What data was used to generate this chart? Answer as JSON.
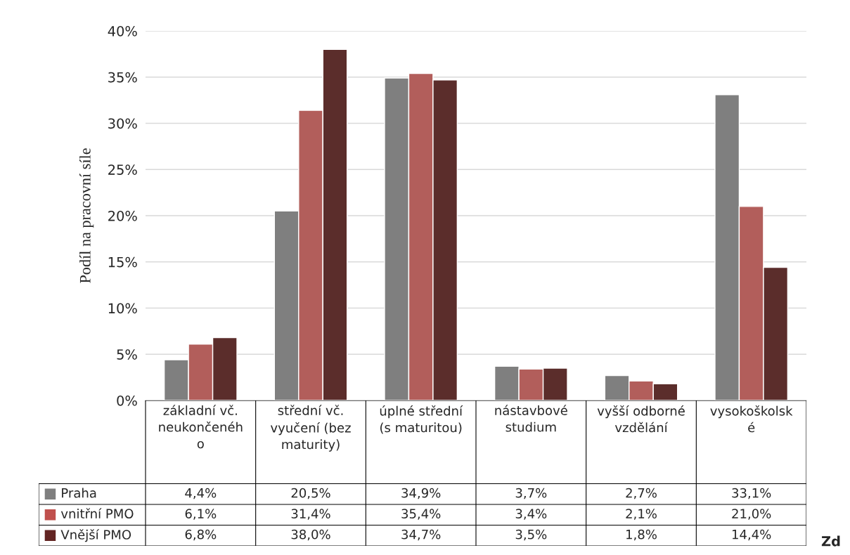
{
  "chart_data": {
    "type": "bar",
    "ylabel": "Podíl na pracovní síle",
    "categories": [
      "základní vč.\nneukončenéh\no",
      "střední vč.\nvyučení (bez\nmaturity)",
      "úplné střední\n(s maturitou)",
      "nástavbové\nstudium",
      "vyšší odborné\nvzdělání",
      "vysokoškolsk\né"
    ],
    "series": [
      {
        "name": "Praha",
        "color": "#7f7f7f",
        "values": [
          4.4,
          20.5,
          34.9,
          3.7,
          2.7,
          33.1
        ],
        "value_labels": [
          "4,4%",
          "20,5%",
          "34,9%",
          "3,7%",
          "2,7%",
          "33,1%"
        ]
      },
      {
        "name": "vnitřní PMO",
        "color": "#c0504d",
        "values": [
          6.1,
          31.4,
          35.4,
          3.4,
          2.1,
          21.0
        ],
        "value_labels": [
          "6,1%",
          "31,4%",
          "35,4%",
          "3,4%",
          "2,1%",
          "21,0%"
        ]
      },
      {
        "name": "Vnější PMO",
        "color": "#632523",
        "values": [
          6.8,
          38.0,
          34.7,
          3.5,
          1.8,
          14.4
        ],
        "value_labels": [
          "6,8%",
          "38,0%",
          "34,7%",
          "3,5%",
          "1,8%",
          "14,4%"
        ]
      }
    ],
    "ylim": [
      0,
      40
    ],
    "yticks": [
      {
        "value": 0,
        "label": "0%"
      },
      {
        "value": 5,
        "label": "5%"
      },
      {
        "value": 10,
        "label": "10%"
      },
      {
        "value": 15,
        "label": "15%"
      },
      {
        "value": 20,
        "label": "20%"
      },
      {
        "value": 25,
        "label": "25%"
      },
      {
        "value": 30,
        "label": "30%"
      },
      {
        "value": 35,
        "label": "35%"
      },
      {
        "value": 40,
        "label": "40%"
      }
    ],
    "grid": "y",
    "legend": "bottom",
    "annotations": [
      "Zd"
    ]
  }
}
